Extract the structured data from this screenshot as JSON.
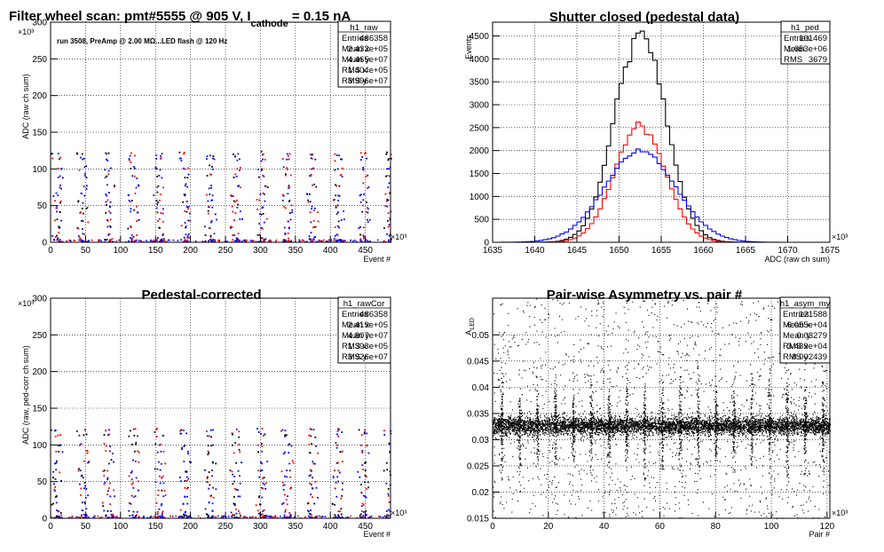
{
  "panels": [
    {
      "id": "raw",
      "title_parts": [
        "Filter wheel scan: pmt#5555 @   905 V, I",
        "cathode",
        " = 0.15 nA"
      ],
      "annotation": "run 3508, PreAmp @ 2.00 MΩ...LED flash @  120 Hz",
      "y_exponent": "×10³",
      "x_exponent": "×10³",
      "stats": {
        "name": "h1_raw",
        "rows": [
          [
            "Entries",
            "486358"
          ],
          [
            "Mean x",
            "2.432e+05"
          ],
          [
            "Mean y",
            "4.465e+07"
          ],
          [
            "RMS x",
            "1.404e+05"
          ],
          [
            "RMS y",
            "3.996e+07"
          ]
        ]
      }
    },
    {
      "id": "ped",
      "title_parts": [
        "Shutter closed (pedestal data)"
      ],
      "annotation": "",
      "y_exponent": "",
      "x_exponent": "×10³",
      "stats": {
        "name": "h1_ped",
        "rows": [
          [
            "Entries",
            "101469"
          ],
          [
            "Mean",
            "1.653e+06"
          ],
          [
            "RMS",
            "3679"
          ]
        ]
      }
    },
    {
      "id": "rawcor",
      "title_parts": [
        "Pedestal-corrected"
      ],
      "annotation": "",
      "y_exponent": "×10³",
      "x_exponent": "×10³",
      "stats": {
        "name": "h1_rawCor",
        "rows": [
          [
            "Entries",
            "486358"
          ],
          [
            "Mean x",
            "2.419e+05"
          ],
          [
            "Mean y",
            "4.807e+07"
          ],
          [
            "RMS x",
            "1.393e+05"
          ],
          [
            "RMS y",
            "3.926e+07"
          ]
        ]
      }
    },
    {
      "id": "asym",
      "title_parts": [
        "Pair-wise Asymmetry vs. pair #"
      ],
      "annotation": "",
      "y_exponent": "",
      "x_exponent": "×10³",
      "stats": {
        "name": "h1_asym_my",
        "rows": [
          [
            "Entries",
            "121588"
          ],
          [
            "Mean x",
            "6.055e+04"
          ],
          [
            "Mean y",
            "0.03279"
          ],
          [
            "RMS x",
            "3.489e+04"
          ],
          [
            "RMS y",
            "0.002439"
          ]
        ]
      }
    }
  ],
  "chart_data": [
    {
      "type": "scatter",
      "title": "Filter wheel scan: pmt#5555 @   905 V, I cathode = 0.15 nA",
      "xlabel": "Event #",
      "ylabel": "ADC (raw ch sum)",
      "xlim": [
        0,
        486
      ],
      "ylim": [
        0,
        300
      ],
      "xticks": [
        0,
        50,
        100,
        150,
        200,
        250,
        300,
        350,
        400,
        450
      ],
      "yticks": [
        0,
        50,
        100,
        150,
        200,
        250,
        300
      ],
      "grid": true,
      "series": [
        {
          "color": "#0000ff"
        },
        {
          "color": "#ff0000"
        },
        {
          "color": "#000000"
        }
      ],
      "cycle": {
        "period": 36.5,
        "levels": [
          120,
          113,
          100,
          90,
          76,
          65,
          56,
          48,
          40,
          30,
          20,
          10,
          4,
          0
        ]
      }
    },
    {
      "type": "histogram",
      "title": "Shutter closed (pedestal data)",
      "xlabel": "ADC (raw ch sum)",
      "ylabel": "Events",
      "xlim": [
        1635,
        1675
      ],
      "ylim": [
        0,
        4800
      ],
      "xticks": [
        1635,
        1640,
        1645,
        1650,
        1655,
        1660,
        1665,
        1670,
        1675
      ],
      "yticks": [
        0,
        500,
        1000,
        1500,
        2000,
        2500,
        3000,
        3500,
        4000,
        4500
      ],
      "grid": true,
      "bin_width": 0.5,
      "series": [
        {
          "color": "#000000",
          "peak": 4600,
          "mean": 1652.5,
          "sigma": 3.0
        },
        {
          "color": "#ff0000",
          "peak": 2550,
          "mean": 1652.5,
          "sigma": 3.0
        },
        {
          "color": "#0000ff",
          "peak": 2000,
          "mean": 1652.5,
          "sigma": 4.2
        }
      ]
    },
    {
      "type": "scatter",
      "title": "Pedestal-corrected",
      "xlabel": "Event #",
      "ylabel": "ADC (raw, ped-corr ch sum)",
      "xlim": [
        0,
        486
      ],
      "ylim": [
        0,
        300
      ],
      "xticks": [
        0,
        50,
        100,
        150,
        200,
        250,
        300,
        350,
        400,
        450
      ],
      "yticks": [
        0,
        50,
        100,
        150,
        200,
        250,
        300
      ],
      "grid": true,
      "series": [
        {
          "color": "#0000ff"
        },
        {
          "color": "#ff0000"
        },
        {
          "color": "#000000"
        }
      ],
      "cycle": {
        "period": 36.5,
        "levels": [
          120,
          113,
          100,
          90,
          76,
          65,
          56,
          48,
          40,
          30,
          20,
          10,
          4,
          0
        ]
      }
    },
    {
      "type": "scatter",
      "title": "Pair-wise Asymmetry vs. pair #",
      "xlabel": "Pair #",
      "ylabel": "A_LED",
      "xlim": [
        0,
        121
      ],
      "ylim": [
        0.015,
        0.057
      ],
      "xticks": [
        0,
        20,
        40,
        60,
        80,
        100,
        120
      ],
      "yticks": [
        0.015,
        0.02,
        0.025,
        0.03,
        0.035,
        0.04,
        0.045,
        0.05
      ],
      "grid": true,
      "series": [
        {
          "color": "#000000"
        }
      ],
      "band": {
        "center": 0.0327,
        "half_width": 0.0012
      },
      "spike_period": 6.4
    }
  ]
}
